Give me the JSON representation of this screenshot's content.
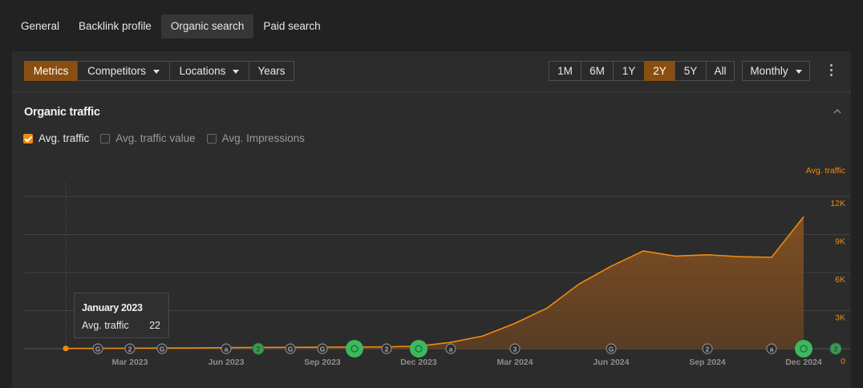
{
  "top_tabs": [
    "General",
    "Backlink profile",
    "Organic search",
    "Paid search"
  ],
  "toolbar": {
    "metrics": "Metrics",
    "competitors": "Competitors",
    "locations": "Locations",
    "years": "Years",
    "periods": [
      "1M",
      "6M",
      "1Y",
      "2Y",
      "5Y",
      "All"
    ],
    "active_period": "2Y",
    "interval": "Monthly"
  },
  "section": {
    "title": "Organic traffic"
  },
  "checkboxes": [
    {
      "label": "Avg. traffic",
      "checked": true
    },
    {
      "label": "Avg. traffic value",
      "checked": false
    },
    {
      "label": "Avg. Impressions",
      "checked": false
    }
  ],
  "tooltip": {
    "title": "January 2023",
    "label": "Avg. traffic",
    "value": "22"
  },
  "colors": {
    "accent": "#f08a12",
    "active_button": "#8a4f10",
    "update_marker": "#3db860"
  },
  "chart_data": {
    "type": "area",
    "ylabel": "Avg. traffic",
    "ylim": [
      0,
      12000
    ],
    "y_ticks": [
      "0",
      "3K",
      "6K",
      "9K",
      "12K"
    ],
    "x_tick_labels": [
      "Mar 2023",
      "Jun 2023",
      "Sep 2023",
      "Dec 2023",
      "Mar 2024",
      "Jun 2024",
      "Sep 2024",
      "Dec 2024"
    ],
    "months": [
      "Jan 2023",
      "Feb 2023",
      "Mar 2023",
      "Apr 2023",
      "May 2023",
      "Jun 2023",
      "Jul 2023",
      "Aug 2023",
      "Sep 2023",
      "Oct 2023",
      "Nov 2023",
      "Dec 2023",
      "Jan 2024",
      "Feb 2024",
      "Mar 2024",
      "Apr 2024",
      "May 2024",
      "Jun 2024",
      "Jul 2024",
      "Aug 2024",
      "Sep 2024",
      "Oct 2024",
      "Nov 2024",
      "Dec 2024"
    ],
    "series": [
      {
        "values": [
          22,
          30,
          40,
          50,
          60,
          80,
          100,
          110,
          120,
          130,
          150,
          200,
          500,
          1000,
          2000,
          3200,
          5100,
          6500,
          7700,
          7300,
          7400,
          7250,
          7200,
          10400
        ]
      }
    ],
    "grid": true,
    "legend": "none",
    "markers": [
      {
        "month": 1,
        "kind": "G",
        "major": false
      },
      {
        "month": 2,
        "kind": "2",
        "major": false
      },
      {
        "month": 3,
        "kind": "G",
        "major": false
      },
      {
        "month": 5,
        "kind": "a",
        "major": false
      },
      {
        "month": 6,
        "kind": "2",
        "major": false,
        "green": true
      },
      {
        "month": 7,
        "kind": "G",
        "major": false
      },
      {
        "month": 8,
        "kind": "G",
        "major": false
      },
      {
        "month": 9,
        "kind": "G",
        "major": true
      },
      {
        "month": 10,
        "kind": "2",
        "major": false
      },
      {
        "month": 11,
        "kind": "G",
        "major": true
      },
      {
        "month": 12,
        "kind": "a",
        "major": false
      },
      {
        "month": 14,
        "kind": "3",
        "major": false
      },
      {
        "month": 17,
        "kind": "G",
        "major": false
      },
      {
        "month": 20,
        "kind": "2",
        "major": false
      },
      {
        "month": 22,
        "kind": "a",
        "major": false
      },
      {
        "month": 23,
        "kind": "G",
        "major": true
      },
      {
        "month": 24,
        "kind": "2",
        "major": false,
        "green": true
      }
    ]
  }
}
